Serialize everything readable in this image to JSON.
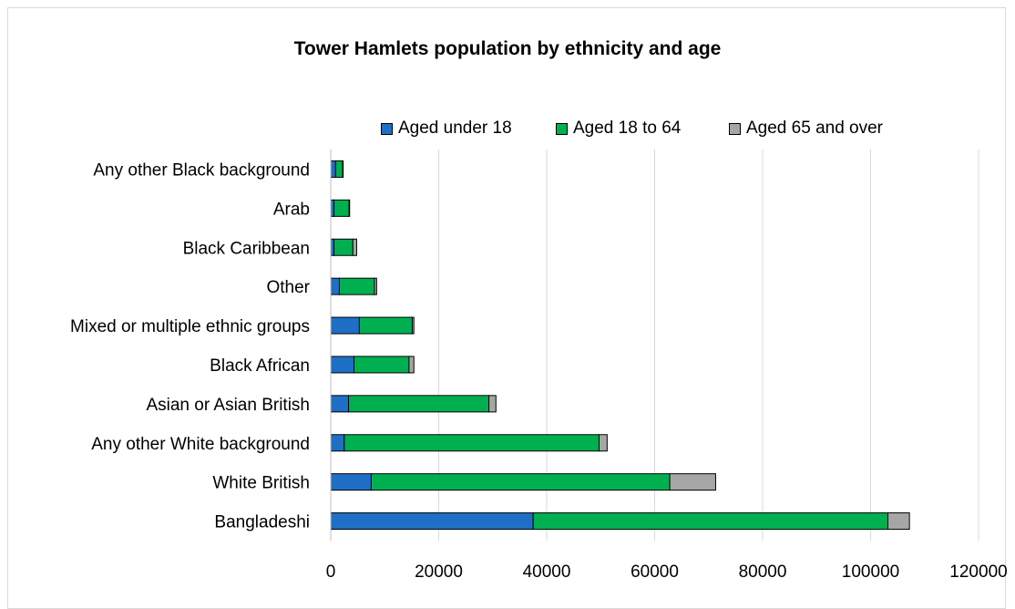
{
  "chart_data": {
    "type": "bar",
    "orientation": "horizontal",
    "stacked": true,
    "title": "Tower Hamlets population by ethnicity and age",
    "categories": [
      "Bangladeshi",
      "White British",
      "Any other White background",
      "Asian or Asian British",
      "Black African",
      "Mixed or multiple ethnic groups",
      "Other",
      "Black Caribbean",
      "Arab",
      "Any other Black background"
    ],
    "series": [
      {
        "name": "Aged under 18",
        "color": "#1f6fc6",
        "values": [
          37500,
          7500,
          2500,
          3300,
          4300,
          5300,
          1600,
          600,
          600,
          900
        ]
      },
      {
        "name": "Aged 18 to 64",
        "color": "#00b050",
        "values": [
          65700,
          55300,
          47200,
          26000,
          10200,
          9800,
          6500,
          3500,
          2800,
          1300
        ]
      },
      {
        "name": "Aged 65 and over",
        "color": "#a6a6a6",
        "values": [
          4000,
          8500,
          1500,
          1300,
          900,
          300,
          400,
          700,
          100,
          100
        ]
      }
    ],
    "xlim": [
      0,
      120000
    ],
    "xticks": [
      "0",
      "20000",
      "40000",
      "60000",
      "80000",
      "100000",
      "120000"
    ],
    "grid": true,
    "legend_position": "top"
  }
}
